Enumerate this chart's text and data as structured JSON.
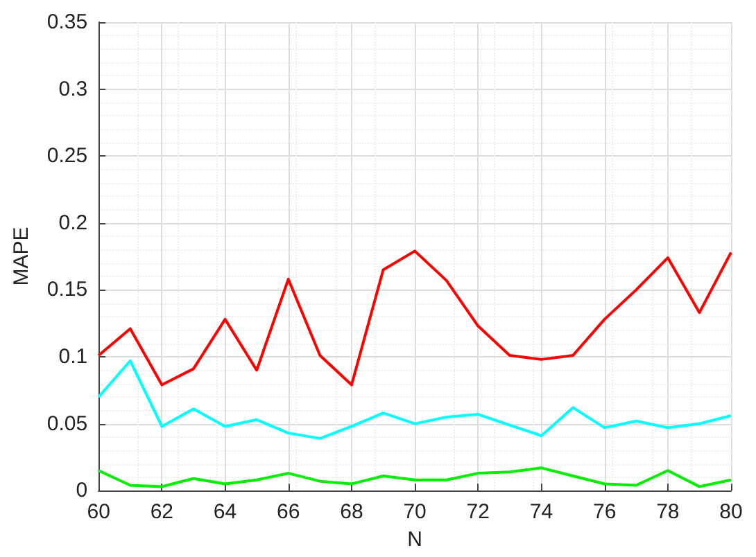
{
  "chart_data": {
    "type": "line",
    "xlabel": "N",
    "ylabel": "MAPE",
    "x": [
      60,
      61,
      62,
      63,
      64,
      65,
      66,
      67,
      68,
      69,
      70,
      71,
      72,
      73,
      74,
      75,
      76,
      77,
      78,
      79,
      80
    ],
    "series": [
      {
        "color": "#ff0000",
        "values": [
          0.101,
          0.121,
          0.079,
          0.091,
          0.128,
          0.09,
          0.158,
          0.101,
          0.079,
          0.165,
          0.179,
          0.157,
          0.123,
          0.101,
          0.098,
          0.101,
          0.128,
          0.15,
          0.174,
          0.133,
          0.178
        ]
      },
      {
        "color": "#00ffff",
        "values": [
          0.07,
          0.097,
          0.048,
          0.061,
          0.048,
          0.053,
          0.043,
          0.039,
          0.048,
          0.058,
          0.05,
          0.055,
          0.057,
          0.049,
          0.041,
          0.062,
          0.047,
          0.052,
          0.047,
          0.05,
          0.056
        ]
      },
      {
        "color": "#00ee00",
        "values": [
          0.015,
          0.004,
          0.003,
          0.009,
          0.005,
          0.008,
          0.013,
          0.007,
          0.005,
          0.011,
          0.008,
          0.008,
          0.013,
          0.014,
          0.017,
          0.011,
          0.005,
          0.004,
          0.015,
          0.003,
          0.008
        ]
      }
    ],
    "xlim": [
      60,
      80
    ],
    "xticks": [
      60,
      62,
      64,
      66,
      68,
      70,
      72,
      74,
      76,
      78,
      80
    ],
    "ylim": [
      0,
      0.35
    ],
    "yticks": [
      {
        "value": 0,
        "label": "0"
      },
      0.05,
      0.1,
      0.15,
      0.2,
      0.25,
      0.3,
      0.35
    ],
    "grid": true,
    "marker": "none",
    "line_style": "solid"
  }
}
